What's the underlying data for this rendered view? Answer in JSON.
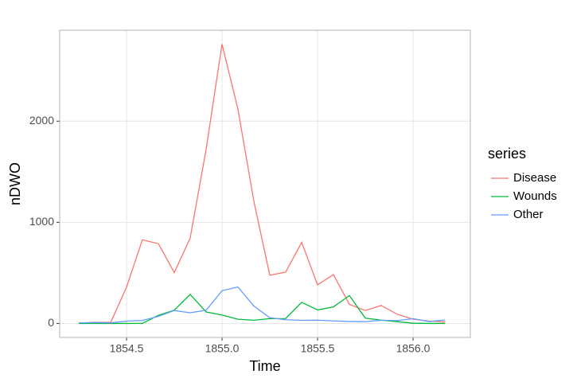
{
  "chart_data": {
    "type": "line",
    "x_label": "Time",
    "y_label": "nDWO",
    "legend_title": "series",
    "x": [
      1854.25,
      1854.333,
      1854.417,
      1854.5,
      1854.583,
      1854.667,
      1854.75,
      1854.833,
      1854.917,
      1855.0,
      1855.083,
      1855.167,
      1855.25,
      1855.333,
      1855.417,
      1855.5,
      1855.583,
      1855.667,
      1855.75,
      1855.833,
      1855.917,
      1856.0,
      1856.083,
      1856.167
    ],
    "series": [
      {
        "name": "Disease",
        "color": "#F8766D",
        "values": [
          1,
          12,
          11,
          359,
          828,
          788,
          503,
          844,
          1725,
          2761,
          2120,
          1205,
          477,
          508,
          802,
          382,
          483,
          189,
          128,
          178,
          91,
          42,
          24,
          15
        ]
      },
      {
        "name": "Wounds",
        "color": "#00BA38",
        "values": [
          0,
          0,
          0,
          0,
          1,
          81,
          132,
          287,
          114,
          83,
          42,
          32,
          48,
          49,
          209,
          134,
          164,
          276,
          53,
          33,
          18,
          2,
          0,
          0
        ]
      },
      {
        "name": "Other",
        "color": "#619CFF",
        "values": [
          5,
          9,
          6,
          23,
          30,
          70,
          128,
          106,
          131,
          324,
          361,
          172,
          57,
          37,
          31,
          33,
          25,
          20,
          18,
          32,
          28,
          48,
          19,
          35
        ]
      }
    ],
    "xlim": [
      1854.15,
      1856.3
    ],
    "ylim": [
      -138,
      2899
    ],
    "xticks": [
      1854.5,
      {
        "value": 1855,
        "label": "1855.0"
      },
      1855.5,
      {
        "value": 1856,
        "label": "1856.0"
      }
    ],
    "yticks": [
      0,
      1000,
      2000
    ],
    "grid": true,
    "legend": "right"
  }
}
